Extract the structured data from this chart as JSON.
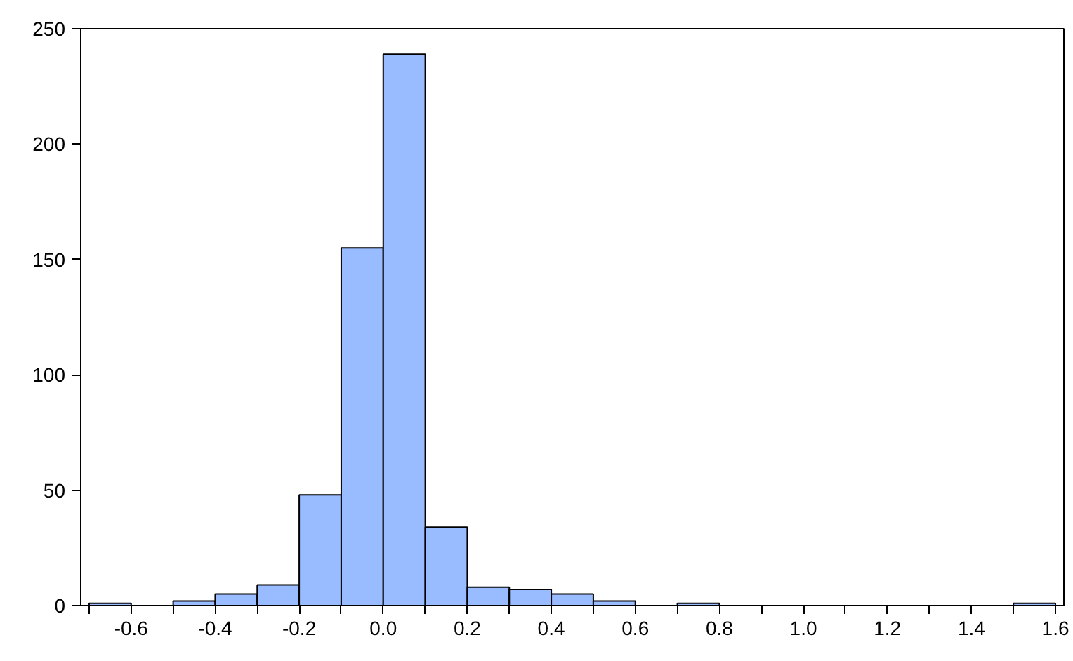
{
  "chart_data": {
    "type": "histogram",
    "color": "#99bbff",
    "bins": [
      -0.7,
      -0.6,
      -0.5,
      -0.4,
      -0.3,
      -0.2,
      -0.1,
      0.0,
      0.1,
      0.2,
      0.3,
      0.4,
      0.5,
      0.6,
      0.7,
      0.8,
      0.9,
      1.0,
      1.1,
      1.2,
      1.3,
      1.4,
      1.5,
      1.6
    ],
    "values": [
      1,
      0,
      2,
      5,
      9,
      48,
      155,
      239,
      34,
      8,
      7,
      5,
      2,
      0,
      1,
      0,
      0,
      0,
      0,
      0,
      0,
      0,
      1
    ],
    "xlim": [
      -0.72,
      1.62
    ],
    "ylim": [
      0,
      250
    ],
    "xticks": [
      {
        "value": -0.7,
        "label": null
      },
      -0.6,
      {
        "value": -0.5,
        "label": null
      },
      -0.4,
      {
        "value": -0.3,
        "label": null
      },
      -0.2,
      {
        "value": -0.1,
        "label": null
      },
      {
        "value": 0.0,
        "label": "0.0"
      },
      {
        "value": 0.1,
        "label": null
      },
      0.2,
      {
        "value": 0.3,
        "label": null
      },
      0.4,
      {
        "value": 0.5,
        "label": null
      },
      0.6,
      {
        "value": 0.7,
        "label": null
      },
      0.8,
      {
        "value": 0.9,
        "label": null
      },
      {
        "value": 1.0,
        "label": "1.0"
      },
      {
        "value": 1.1,
        "label": null
      },
      1.2,
      {
        "value": 1.3,
        "label": null
      },
      1.4,
      {
        "value": 1.5,
        "label": null
      },
      1.6
    ],
    "yticks": [
      0,
      50,
      100,
      150,
      200,
      250
    ],
    "grid": false
  }
}
